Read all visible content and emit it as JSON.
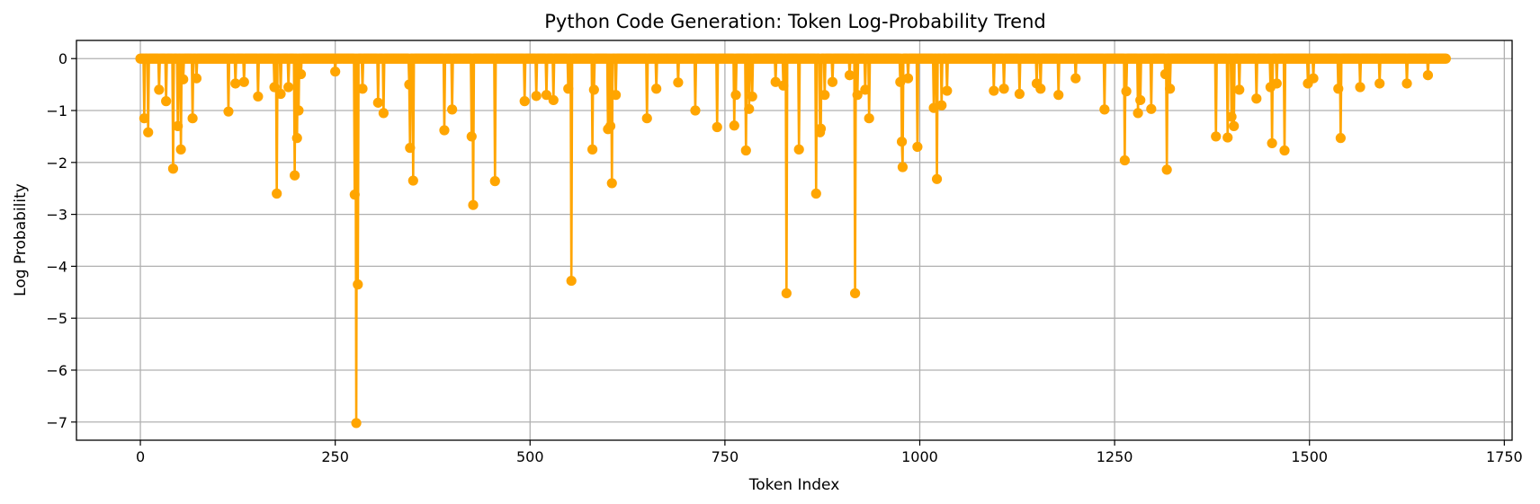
{
  "chart_data": {
    "type": "line",
    "title": "Python Code Generation: Token Log-Probability Trend",
    "xlabel": "Token Index",
    "ylabel": "Log Probability",
    "xlim": [
      -82,
      1760
    ],
    "ylim": [
      -7.35,
      0.35
    ],
    "x_ticks": [
      0,
      250,
      500,
      750,
      1000,
      1250,
      1500,
      1750
    ],
    "y_ticks": [
      0,
      -1,
      -2,
      -3,
      -4,
      -5,
      -6,
      -7
    ],
    "x_tick_labels": [
      "0",
      "250",
      "500",
      "750",
      "1000",
      "1250",
      "1500",
      "1750"
    ],
    "y_tick_labels": [
      "0",
      "−1",
      "−2",
      "−3",
      "−4",
      "−5",
      "−6",
      "−7"
    ],
    "grid": true,
    "legend": "none",
    "color": "#FFA500",
    "marker": "circle",
    "baseline_value": 0,
    "n_tokens": 1676,
    "series": [
      {
        "notable_points": [
          {
            "x": 5,
            "y": -1.15
          },
          {
            "x": 10,
            "y": -1.42
          },
          {
            "x": 24,
            "y": -0.6
          },
          {
            "x": 33,
            "y": -0.82
          },
          {
            "x": 42,
            "y": -2.12
          },
          {
            "x": 48,
            "y": -1.3
          },
          {
            "x": 52,
            "y": -1.75
          },
          {
            "x": 55,
            "y": -0.4
          },
          {
            "x": 67,
            "y": -1.15
          },
          {
            "x": 72,
            "y": -0.38
          },
          {
            "x": 113,
            "y": -1.02
          },
          {
            "x": 122,
            "y": -0.48
          },
          {
            "x": 133,
            "y": -0.45
          },
          {
            "x": 151,
            "y": -0.73
          },
          {
            "x": 172,
            "y": -0.55
          },
          {
            "x": 175,
            "y": -2.6
          },
          {
            "x": 180,
            "y": -0.68
          },
          {
            "x": 190,
            "y": -0.55
          },
          {
            "x": 198,
            "y": -2.25
          },
          {
            "x": 201,
            "y": -1.53
          },
          {
            "x": 203,
            "y": -1.0
          },
          {
            "x": 206,
            "y": -0.3
          },
          {
            "x": 250,
            "y": -0.25
          },
          {
            "x": 275,
            "y": -2.62
          },
          {
            "x": 277,
            "y": -7.02
          },
          {
            "x": 279,
            "y": -4.35
          },
          {
            "x": 285,
            "y": -0.58
          },
          {
            "x": 305,
            "y": -0.85
          },
          {
            "x": 312,
            "y": -1.05
          },
          {
            "x": 345,
            "y": -0.5
          },
          {
            "x": 346,
            "y": -1.72
          },
          {
            "x": 350,
            "y": -2.35
          },
          {
            "x": 390,
            "y": -1.38
          },
          {
            "x": 400,
            "y": -0.98
          },
          {
            "x": 425,
            "y": -1.5
          },
          {
            "x": 427,
            "y": -2.82
          },
          {
            "x": 455,
            "y": -2.36
          },
          {
            "x": 493,
            "y": -0.82
          },
          {
            "x": 508,
            "y": -0.72
          },
          {
            "x": 521,
            "y": -0.7
          },
          {
            "x": 530,
            "y": -0.8
          },
          {
            "x": 549,
            "y": -0.58
          },
          {
            "x": 553,
            "y": -4.28
          },
          {
            "x": 580,
            "y": -1.75
          },
          {
            "x": 582,
            "y": -0.6
          },
          {
            "x": 600,
            "y": -1.36
          },
          {
            "x": 603,
            "y": -1.3
          },
          {
            "x": 605,
            "y": -2.4
          },
          {
            "x": 610,
            "y": -0.7
          },
          {
            "x": 650,
            "y": -1.15
          },
          {
            "x": 662,
            "y": -0.58
          },
          {
            "x": 690,
            "y": -0.46
          },
          {
            "x": 712,
            "y": -1.0
          },
          {
            "x": 740,
            "y": -1.32
          },
          {
            "x": 762,
            "y": -1.29
          },
          {
            "x": 764,
            "y": -0.7
          },
          {
            "x": 777,
            "y": -1.77
          },
          {
            "x": 781,
            "y": -0.97
          },
          {
            "x": 785,
            "y": -0.73
          },
          {
            "x": 815,
            "y": -0.45
          },
          {
            "x": 825,
            "y": -0.52
          },
          {
            "x": 829,
            "y": -4.52
          },
          {
            "x": 845,
            "y": -1.75
          },
          {
            "x": 867,
            "y": -2.6
          },
          {
            "x": 872,
            "y": -1.42
          },
          {
            "x": 873,
            "y": -1.35
          },
          {
            "x": 878,
            "y": -0.7
          },
          {
            "x": 888,
            "y": -0.45
          },
          {
            "x": 910,
            "y": -0.32
          },
          {
            "x": 917,
            "y": -4.52
          },
          {
            "x": 920,
            "y": -0.7
          },
          {
            "x": 930,
            "y": -0.6
          },
          {
            "x": 935,
            "y": -1.15
          },
          {
            "x": 975,
            "y": -0.45
          },
          {
            "x": 977,
            "y": -1.6
          },
          {
            "x": 978,
            "y": -2.09
          },
          {
            "x": 985,
            "y": -0.38
          },
          {
            "x": 997,
            "y": -1.7
          },
          {
            "x": 1018,
            "y": -0.95
          },
          {
            "x": 1022,
            "y": -2.32
          },
          {
            "x": 1028,
            "y": -0.9
          },
          {
            "x": 1035,
            "y": -0.62
          },
          {
            "x": 1095,
            "y": -0.62
          },
          {
            "x": 1108,
            "y": -0.58
          },
          {
            "x": 1128,
            "y": -0.68
          },
          {
            "x": 1150,
            "y": -0.48
          },
          {
            "x": 1155,
            "y": -0.58
          },
          {
            "x": 1178,
            "y": -0.7
          },
          {
            "x": 1200,
            "y": -0.38
          },
          {
            "x": 1237,
            "y": -0.98
          },
          {
            "x": 1263,
            "y": -1.96
          },
          {
            "x": 1265,
            "y": -0.63
          },
          {
            "x": 1280,
            "y": -1.05
          },
          {
            "x": 1283,
            "y": -0.8
          },
          {
            "x": 1297,
            "y": -0.97
          },
          {
            "x": 1315,
            "y": -0.3
          },
          {
            "x": 1317,
            "y": -2.14
          },
          {
            "x": 1321,
            "y": -0.58
          },
          {
            "x": 1380,
            "y": -1.5
          },
          {
            "x": 1395,
            "y": -1.52
          },
          {
            "x": 1400,
            "y": -1.12
          },
          {
            "x": 1403,
            "y": -1.3
          },
          {
            "x": 1410,
            "y": -0.6
          },
          {
            "x": 1432,
            "y": -0.77
          },
          {
            "x": 1450,
            "y": -0.55
          },
          {
            "x": 1452,
            "y": -1.63
          },
          {
            "x": 1458,
            "y": -0.48
          },
          {
            "x": 1468,
            "y": -1.77
          },
          {
            "x": 1498,
            "y": -0.48
          },
          {
            "x": 1505,
            "y": -0.38
          },
          {
            "x": 1537,
            "y": -0.58
          },
          {
            "x": 1540,
            "y": -1.53
          },
          {
            "x": 1565,
            "y": -0.55
          },
          {
            "x": 1590,
            "y": -0.48
          },
          {
            "x": 1625,
            "y": -0.48
          },
          {
            "x": 1652,
            "y": -0.32
          },
          {
            "x": 1675,
            "y": 0
          }
        ]
      }
    ]
  }
}
